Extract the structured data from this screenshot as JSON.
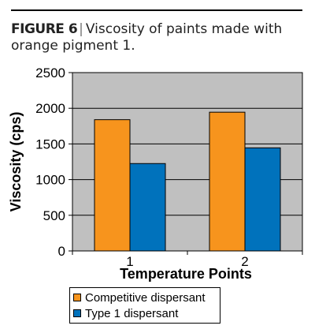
{
  "caption": {
    "figure": "FIGURE 6",
    "separator": "|",
    "text": "Viscosity of paints made with orange pigment 1."
  },
  "chart_data": {
    "type": "bar",
    "categories": [
      "1",
      "2"
    ],
    "series": [
      {
        "name": "Competitive dispersant",
        "values": [
          1840,
          1945
        ],
        "color": "#F7941D"
      },
      {
        "name": "Type 1 dispersant",
        "values": [
          1225,
          1445
        ],
        "color": "#0072BC"
      }
    ],
    "xlabel": "Temperature Points",
    "ylabel": "Viscosity (cps)",
    "ylim": [
      0,
      2500
    ],
    "yticks": [
      "0",
      "500",
      "1000",
      "1500",
      "2000",
      "2500"
    ],
    "grid": true,
    "plot_background": "#C0C0C0",
    "legend_position": "bottom"
  }
}
